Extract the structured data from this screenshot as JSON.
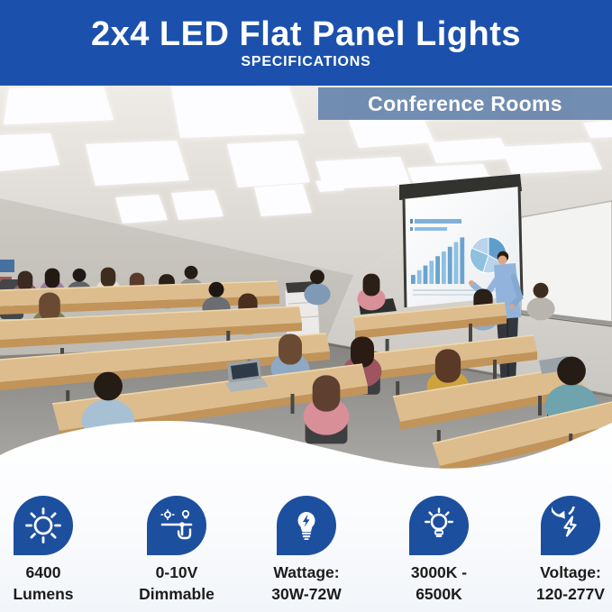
{
  "header": {
    "title": "2x4 LED Flat Panel Lights",
    "subtitle": "SPECIFICATIONS"
  },
  "photo": {
    "badge_label": "Conference Rooms"
  },
  "specs": {
    "items": [
      {
        "icon": "brightness-sun-icon",
        "line1": "6400",
        "line2": "Lumens"
      },
      {
        "icon": "dimmer-hand-icon",
        "line1": "0-10V",
        "line2": "Dimmable"
      },
      {
        "icon": "bulb-lightning-icon",
        "line1": "Wattage:",
        "line2": "30W-72W"
      },
      {
        "icon": "bulb-shine-icon",
        "line1": "3000K -",
        "line2": "6500K"
      },
      {
        "icon": "lightning-cycle-icon",
        "line1": "Voltage:",
        "line2": "120-277V"
      }
    ]
  },
  "colors": {
    "header_bg": "#1b51ac",
    "icon_bg": "#1d4f9f",
    "badge_bg": "#6885ad",
    "label_text": "#1c1c1c",
    "footer_bg": "#f2f5f9"
  }
}
